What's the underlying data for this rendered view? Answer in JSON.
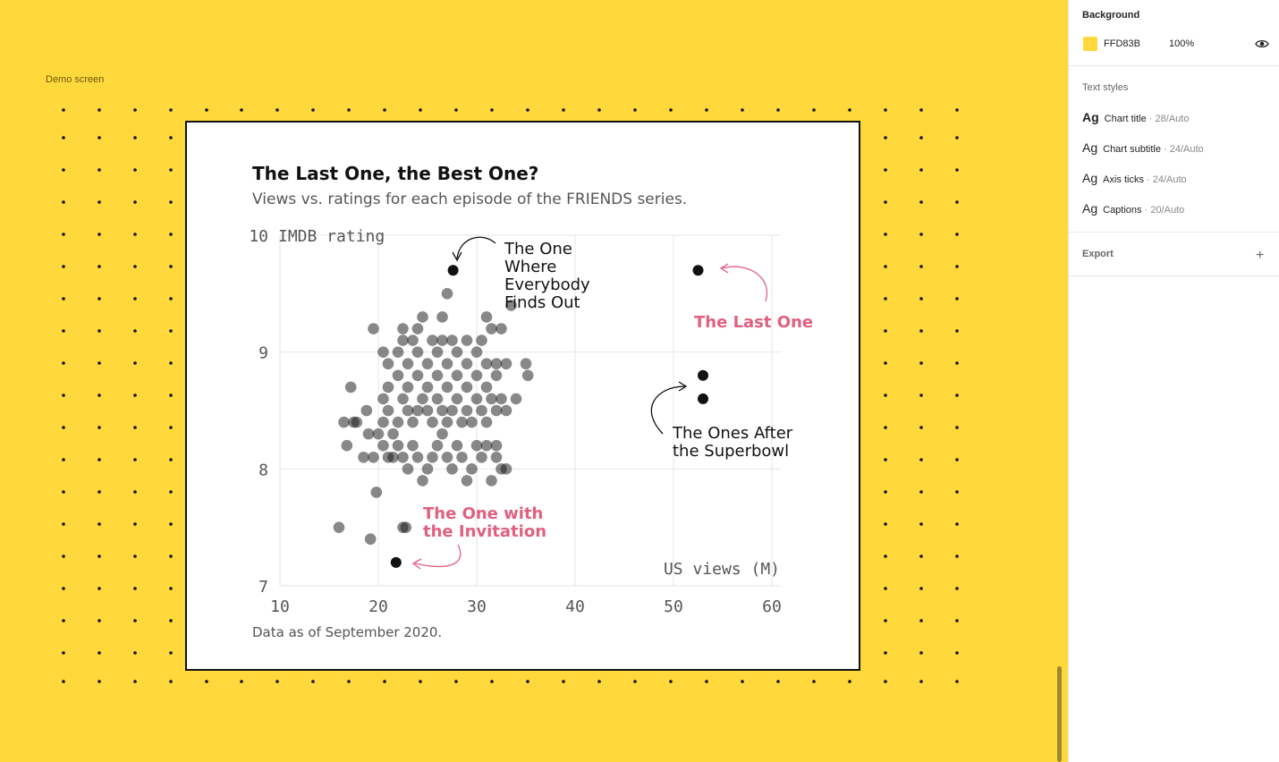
{
  "canvas": {
    "frame_label": "Demo screen",
    "background_color": "#FFD83B",
    "dot_color": "#111111"
  },
  "panel": {
    "background": {
      "title": "Background",
      "swatch_color": "#FFD83B",
      "hex": "FFD83B",
      "opacity": "100%",
      "visibility_icon": "eye-icon"
    },
    "text_styles": {
      "title": "Text styles",
      "items": [
        {
          "ag": "Ag",
          "name": "Chart title",
          "meta": " · 28/Auto",
          "weight": "bold"
        },
        {
          "ag": "Ag",
          "name": "Chart subtitle",
          "meta": " · 24/Auto",
          "weight": "normal"
        },
        {
          "ag": "Ag",
          "name": "Axis ticks",
          "meta": " · 24/Auto",
          "weight": "normal"
        },
        {
          "ag": "Ag",
          "name": "Captions",
          "meta": " · 20/Auto",
          "weight": "normal"
        }
      ]
    },
    "export": {
      "title": "Export",
      "add_icon": "plus-icon"
    }
  },
  "chart": {
    "title": "The Last One, the Best One?",
    "subtitle": "Views vs. ratings for each episode of the FRIENDS series.",
    "caption": "Data as of September 2020.",
    "annotations": {
      "everybody_finds_out": [
        "The One",
        "Where",
        "Everybody",
        "Finds Out"
      ],
      "last_one": "The Last One",
      "superbowl": [
        "The Ones After",
        "the Superbowl"
      ],
      "invitation": [
        "The One with",
        "the Invitation"
      ]
    },
    "accent_color": "#e0607e"
  },
  "chart_data": {
    "type": "scatter",
    "title": "The Last One, the Best One?",
    "subtitle": "Views vs. ratings for each episode of the FRIENDS series.",
    "xlabel": "US views (M)",
    "ylabel": "IMDB rating",
    "xlim": [
      10,
      60
    ],
    "ylim": [
      7,
      10
    ],
    "x_ticks": [
      "10",
      "20",
      "30",
      "40",
      "50",
      "60"
    ],
    "y_ticks": [
      "7",
      "8",
      "9",
      "10"
    ],
    "grid": true,
    "series": [
      {
        "values": [
          [
            16,
            7.5
          ],
          [
            19.2,
            7.4
          ],
          [
            22.5,
            7.5
          ],
          [
            22.8,
            7.5
          ],
          [
            19.8,
            7.8
          ],
          [
            16.5,
            8.4
          ],
          [
            17.5,
            8.4
          ],
          [
            16.8,
            8.2
          ],
          [
            18.5,
            8.1
          ],
          [
            19.5,
            8.1
          ],
          [
            17.2,
            8.7
          ],
          [
            18.8,
            8.5
          ],
          [
            17.8,
            8.4
          ],
          [
            19,
            8.3
          ],
          [
            20,
            8.3
          ],
          [
            20.5,
            8.2
          ],
          [
            21,
            8.1
          ],
          [
            21.5,
            8.1
          ],
          [
            22,
            8.2
          ],
          [
            22.5,
            8.1
          ],
          [
            23,
            8.0
          ],
          [
            23.5,
            8.2
          ],
          [
            24,
            8.1
          ],
          [
            24.5,
            7.9
          ],
          [
            25,
            8.0
          ],
          [
            25.5,
            8.1
          ],
          [
            26,
            8.2
          ],
          [
            26.5,
            8.3
          ],
          [
            27,
            8.1
          ],
          [
            27.5,
            8.0
          ],
          [
            28,
            8.2
          ],
          [
            28.5,
            8.1
          ],
          [
            29,
            7.9
          ],
          [
            29.5,
            8.0
          ],
          [
            30,
            8.2
          ],
          [
            30.5,
            8.1
          ],
          [
            31,
            8.2
          ],
          [
            31.5,
            7.9
          ],
          [
            32,
            8.1
          ],
          [
            32.5,
            8.0
          ],
          [
            20.5,
            8.4
          ],
          [
            21,
            8.5
          ],
          [
            21.5,
            8.3
          ],
          [
            22,
            8.4
          ],
          [
            22.5,
            8.6
          ],
          [
            23,
            8.5
          ],
          [
            23.5,
            8.4
          ],
          [
            24,
            8.5
          ],
          [
            24.5,
            8.6
          ],
          [
            25,
            8.5
          ],
          [
            25.5,
            8.4
          ],
          [
            26,
            8.6
          ],
          [
            26.5,
            8.5
          ],
          [
            27,
            8.4
          ],
          [
            27.5,
            8.5
          ],
          [
            28,
            8.6
          ],
          [
            28.5,
            8.4
          ],
          [
            29,
            8.5
          ],
          [
            29.5,
            8.4
          ],
          [
            30,
            8.6
          ],
          [
            30.5,
            8.5
          ],
          [
            31,
            8.4
          ],
          [
            31.5,
            8.6
          ],
          [
            32,
            8.5
          ],
          [
            32.5,
            8.6
          ],
          [
            33,
            8.5
          ],
          [
            34,
            8.6
          ],
          [
            20.5,
            8.6
          ],
          [
            21,
            8.7
          ],
          [
            22,
            8.8
          ],
          [
            23,
            8.7
          ],
          [
            24,
            8.8
          ],
          [
            25,
            8.7
          ],
          [
            26,
            8.8
          ],
          [
            27,
            8.7
          ],
          [
            28,
            8.8
          ],
          [
            29,
            8.7
          ],
          [
            30,
            8.8
          ],
          [
            31,
            8.7
          ],
          [
            32,
            8.8
          ],
          [
            21,
            8.9
          ],
          [
            22,
            9.0
          ],
          [
            23,
            8.9
          ],
          [
            24,
            9.0
          ],
          [
            25,
            8.9
          ],
          [
            26,
            9.0
          ],
          [
            27,
            8.9
          ],
          [
            28,
            9.0
          ],
          [
            29,
            8.9
          ],
          [
            30,
            9.0
          ],
          [
            31,
            8.9
          ],
          [
            32,
            8.9
          ],
          [
            33,
            8.9
          ],
          [
            35,
            8.9
          ],
          [
            35.2,
            8.8
          ],
          [
            20.5,
            9.0
          ],
          [
            22.5,
            9.1
          ],
          [
            23.5,
            9.1
          ],
          [
            25.5,
            9.1
          ],
          [
            26.5,
            9.1
          ],
          [
            27.5,
            9.1
          ],
          [
            29,
            9.1
          ],
          [
            30.5,
            9.1
          ],
          [
            31.5,
            9.2
          ],
          [
            32.5,
            9.2
          ],
          [
            19.5,
            9.2
          ],
          [
            22.5,
            9.2
          ],
          [
            24,
            9.2
          ],
          [
            24.5,
            9.3
          ],
          [
            26.5,
            9.3
          ],
          [
            31,
            9.3
          ],
          [
            27,
            9.5
          ],
          [
            33.5,
            9.4
          ],
          [
            32,
            8.2
          ],
          [
            33,
            8.0
          ],
          [
            27.6,
            9.7
          ],
          [
            52.5,
            9.7
          ],
          [
            53,
            8.8
          ],
          [
            53,
            8.6
          ],
          [
            21.8,
            7.2
          ]
        ]
      }
    ],
    "annotations": [
      {
        "text": "The One Where Everybody Finds Out",
        "x": 27.6,
        "y": 9.7
      },
      {
        "text": "The Last One",
        "x": 52.5,
        "y": 9.7
      },
      {
        "text": "The Ones After the Superbowl",
        "x": 53,
        "y": 8.7
      },
      {
        "text": "The One with the Invitation",
        "x": 21.8,
        "y": 7.2
      }
    ],
    "caption": "Data as of September 2020."
  }
}
